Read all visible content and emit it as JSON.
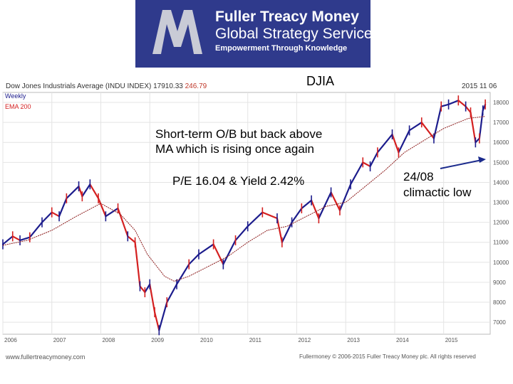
{
  "brand": {
    "name": "Fuller Treacy Money",
    "subtitle": "Global Strategy Service",
    "tagline": "Empowerment Through Knowledge"
  },
  "chart_header": {
    "title": "Dow Jones Industrials Average (INDU INDEX) 17910.33",
    "change": "246.79",
    "date": "2015 11 06",
    "label_main": "DJIA"
  },
  "legend": {
    "weekly": "Weekly",
    "ema": "EMA 200"
  },
  "annotations": {
    "comment_line1": "Short-term O/B but back above",
    "comment_line2": "MA which is rising once again",
    "pe_yield": "P/E 16.04 & Yield 2.42%",
    "low_date": "24/08",
    "low_label": "climactic low"
  },
  "footer": {
    "website": "www.fullertreacymoney.com",
    "copyright": "Fullermoney © 2006-2015 Fuller Treacy Money plc. All rights reserved"
  },
  "colors": {
    "banner": "#2f3a8c",
    "up": "#1c1c8c",
    "down": "#d42020",
    "ema": "#8b1a1a",
    "arrow": "#1a2a8c"
  },
  "chart_data": {
    "type": "line",
    "title": "Dow Jones Industrials Average (INDU INDEX) 17910.33",
    "x_ticks": [
      "2006",
      "2007",
      "2008",
      "2009",
      "2010",
      "2011",
      "2012",
      "2013",
      "2014",
      "2015"
    ],
    "y_ticks": [
      "7000",
      "8000",
      "9000",
      "10000",
      "11000",
      "12000",
      "13000",
      "14000",
      "15000",
      "16000",
      "17000",
      "18000"
    ],
    "ylim": [
      6400,
      18500
    ],
    "xlim": [
      2006.0,
      2015.95
    ],
    "series": [
      {
        "name": "Weekly",
        "x": [
          2006.0,
          2006.2,
          2006.35,
          2006.55,
          2006.8,
          2007.0,
          2007.15,
          2007.3,
          2007.55,
          2007.62,
          2007.78,
          2007.95,
          2008.1,
          2008.35,
          2008.55,
          2008.7,
          2008.8,
          2008.9,
          2009.0,
          2009.1,
          2009.19,
          2009.35,
          2009.55,
          2009.8,
          2010.0,
          2010.3,
          2010.5,
          2010.75,
          2011.0,
          2011.3,
          2011.6,
          2011.7,
          2011.9,
          2012.1,
          2012.3,
          2012.45,
          2012.7,
          2012.88,
          2013.1,
          2013.35,
          2013.5,
          2013.65,
          2013.95,
          2014.08,
          2014.3,
          2014.55,
          2014.8,
          2014.95,
          2015.1,
          2015.3,
          2015.45,
          2015.55,
          2015.65,
          2015.73,
          2015.8,
          2015.85
        ],
        "y": [
          10900,
          11300,
          11100,
          11250,
          12000,
          12500,
          12300,
          13200,
          13800,
          13300,
          13900,
          13200,
          12300,
          12700,
          11300,
          11000,
          8800,
          8500,
          8900,
          7500,
          6600,
          8000,
          8900,
          9900,
          10400,
          10900,
          9900,
          11100,
          11800,
          12500,
          12200,
          11000,
          12000,
          12700,
          13100,
          12200,
          13500,
          12600,
          13900,
          15000,
          14800,
          15500,
          16400,
          15500,
          16600,
          17000,
          16200,
          17800,
          17900,
          18100,
          17800,
          17500,
          16000,
          16200,
          17600,
          17900
        ]
      },
      {
        "name": "EMA 200",
        "x": [
          2006.0,
          2006.5,
          2007.0,
          2007.5,
          2008.0,
          2008.4,
          2008.7,
          2008.95,
          2009.3,
          2009.5,
          2009.8,
          2010.2,
          2010.6,
          2011.0,
          2011.4,
          2011.8,
          2012.2,
          2012.6,
          2013.0,
          2013.4,
          2013.8,
          2014.2,
          2014.6,
          2015.0,
          2015.5,
          2015.85
        ],
        "y": [
          10850,
          11100,
          11600,
          12300,
          12950,
          12400,
          11600,
          10400,
          9300,
          9050,
          9300,
          9800,
          10300,
          11000,
          11600,
          11800,
          12300,
          12800,
          13000,
          13800,
          14600,
          15500,
          16100,
          16700,
          17200,
          17300
        ]
      }
    ]
  }
}
